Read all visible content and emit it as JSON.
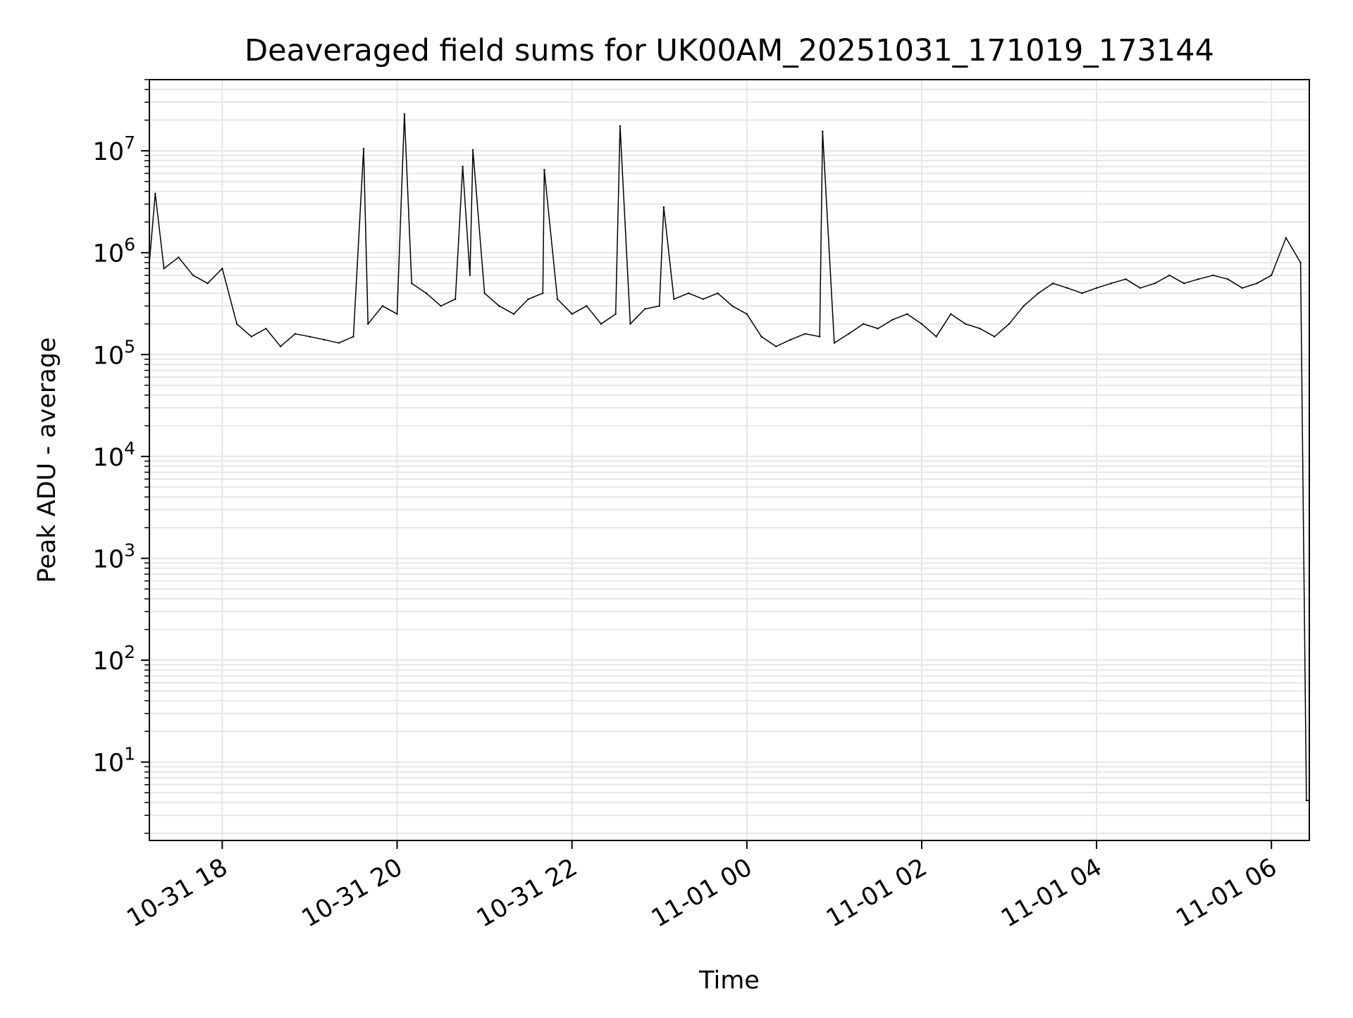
{
  "chart_data": {
    "type": "line",
    "title": "Deaveraged field sums for UK00AM_20251031_171019_173144",
    "xlabel": "Time",
    "ylabel": "Peak ADU - average",
    "y_scale": "log",
    "ylim": [
      1.7,
      50000000
    ],
    "xlim": [
      "2025-10-31 17:10",
      "2025-11-01 06:26"
    ],
    "grid": "major and minor",
    "legend": "none",
    "line_color": "#000000",
    "grid_color": "#e6e6e6",
    "x_ticks": [
      {
        "t": "2025-10-31 18:00",
        "label": "10-31 18"
      },
      {
        "t": "2025-10-31 20:00",
        "label": "10-31 20"
      },
      {
        "t": "2025-10-31 22:00",
        "label": "10-31 22"
      },
      {
        "t": "2025-11-01 00:00",
        "label": "11-01 00"
      },
      {
        "t": "2025-11-01 02:00",
        "label": "11-01 02"
      },
      {
        "t": "2025-11-01 04:00",
        "label": "11-01 04"
      },
      {
        "t": "2025-11-01 06:00",
        "label": "11-01 06"
      }
    ],
    "y_ticks": [
      {
        "value": 10,
        "base": "10",
        "exp": "1"
      },
      {
        "value": 100,
        "base": "10",
        "exp": "2"
      },
      {
        "value": 1000,
        "base": "10",
        "exp": "3"
      },
      {
        "value": 10000,
        "base": "10",
        "exp": "4"
      },
      {
        "value": 100000,
        "base": "10",
        "exp": "5"
      },
      {
        "value": 1000000,
        "base": "10",
        "exp": "6"
      },
      {
        "value": 10000000,
        "base": "10",
        "exp": "7"
      }
    ],
    "series": [
      {
        "x": [
          "2025-10-31 17:10",
          "2025-10-31 17:20",
          "2025-10-31 17:30",
          "2025-10-31 17:40",
          "2025-10-31 17:50",
          "2025-10-31 18:00",
          "2025-10-31 18:10",
          "2025-10-31 18:20",
          "2025-10-31 18:30",
          "2025-10-31 18:40",
          "2025-10-31 18:50",
          "2025-10-31 19:00",
          "2025-10-31 19:10",
          "2025-10-31 19:20",
          "2025-10-31 19:30",
          "2025-10-31 19:40",
          "2025-10-31 19:50",
          "2025-10-31 20:00",
          "2025-10-31 20:10",
          "2025-10-31 20:20",
          "2025-10-31 20:30",
          "2025-10-31 20:40",
          "2025-10-31 20:50",
          "2025-10-31 21:00",
          "2025-10-31 21:10",
          "2025-10-31 21:20",
          "2025-10-31 21:30",
          "2025-10-31 21:40",
          "2025-10-31 21:50",
          "2025-10-31 22:00",
          "2025-10-31 22:10",
          "2025-10-31 22:20",
          "2025-10-31 22:30",
          "2025-10-31 22:40",
          "2025-10-31 22:50",
          "2025-10-31 23:00",
          "2025-10-31 23:10",
          "2025-10-31 23:20",
          "2025-10-31 23:30",
          "2025-10-31 23:40",
          "2025-10-31 23:50",
          "2025-11-01 00:00",
          "2025-11-01 00:10",
          "2025-11-01 00:20",
          "2025-11-01 00:30",
          "2025-11-01 00:40",
          "2025-11-01 00:50",
          "2025-11-01 01:00",
          "2025-11-01 01:10",
          "2025-11-01 01:20",
          "2025-11-01 01:30",
          "2025-11-01 01:40",
          "2025-11-01 01:50",
          "2025-11-01 02:00",
          "2025-11-01 02:10",
          "2025-11-01 02:20",
          "2025-11-01 02:30",
          "2025-11-01 02:40",
          "2025-11-01 02:50",
          "2025-11-01 03:00",
          "2025-11-01 03:10",
          "2025-11-01 03:20",
          "2025-11-01 03:30",
          "2025-11-01 03:40",
          "2025-11-01 03:50",
          "2025-11-01 04:00",
          "2025-11-01 04:10",
          "2025-11-01 04:20",
          "2025-11-01 04:30",
          "2025-11-01 04:40",
          "2025-11-01 04:50",
          "2025-11-01 05:00",
          "2025-11-01 05:10",
          "2025-11-01 05:20",
          "2025-11-01 05:30",
          "2025-11-01 05:40",
          "2025-11-01 05:50",
          "2025-11-01 06:00",
          "2025-11-01 06:10",
          "2025-11-01 06:20",
          "2025-11-01 06:24",
          "2025-11-01 06:26"
        ],
        "y": [
          800000,
          700000,
          900000,
          600000,
          500000,
          700000,
          200000,
          150000,
          180000,
          120000,
          160000,
          150000,
          140000,
          130000,
          150000,
          200000,
          300000,
          250000,
          500000,
          400000,
          300000,
          350000,
          600000,
          400000,
          300000,
          250000,
          350000,
          400000,
          350000,
          250000,
          300000,
          200000,
          250000,
          200000,
          280000,
          300000,
          350000,
          400000,
          350000,
          400000,
          300000,
          250000,
          150000,
          120000,
          140000,
          160000,
          150000,
          130000,
          160000,
          200000,
          180000,
          220000,
          250000,
          200000,
          150000,
          250000,
          200000,
          180000,
          150000,
          200000,
          300000,
          400000,
          500000,
          450000,
          400000,
          450000,
          500000,
          550000,
          450000,
          500000,
          600000,
          500000,
          550000,
          600000,
          550000,
          450000,
          500000,
          600000,
          1400000,
          800000,
          4.2,
          4.2
        ],
        "spikes": [
          {
            "x": "2025-10-31 17:14",
            "y": 3800000
          },
          {
            "x": "2025-10-31 19:37",
            "y": 10500000
          },
          {
            "x": "2025-10-31 20:05",
            "y": 23000000
          },
          {
            "x": "2025-10-31 20:45",
            "y": 7000000
          },
          {
            "x": "2025-10-31 20:52",
            "y": 10200000
          },
          {
            "x": "2025-10-31 21:41",
            "y": 6500000
          },
          {
            "x": "2025-10-31 22:33",
            "y": 17500000
          },
          {
            "x": "2025-10-31 23:03",
            "y": 2800000
          },
          {
            "x": "2025-11-01 00:52",
            "y": 15500000
          }
        ]
      }
    ]
  }
}
